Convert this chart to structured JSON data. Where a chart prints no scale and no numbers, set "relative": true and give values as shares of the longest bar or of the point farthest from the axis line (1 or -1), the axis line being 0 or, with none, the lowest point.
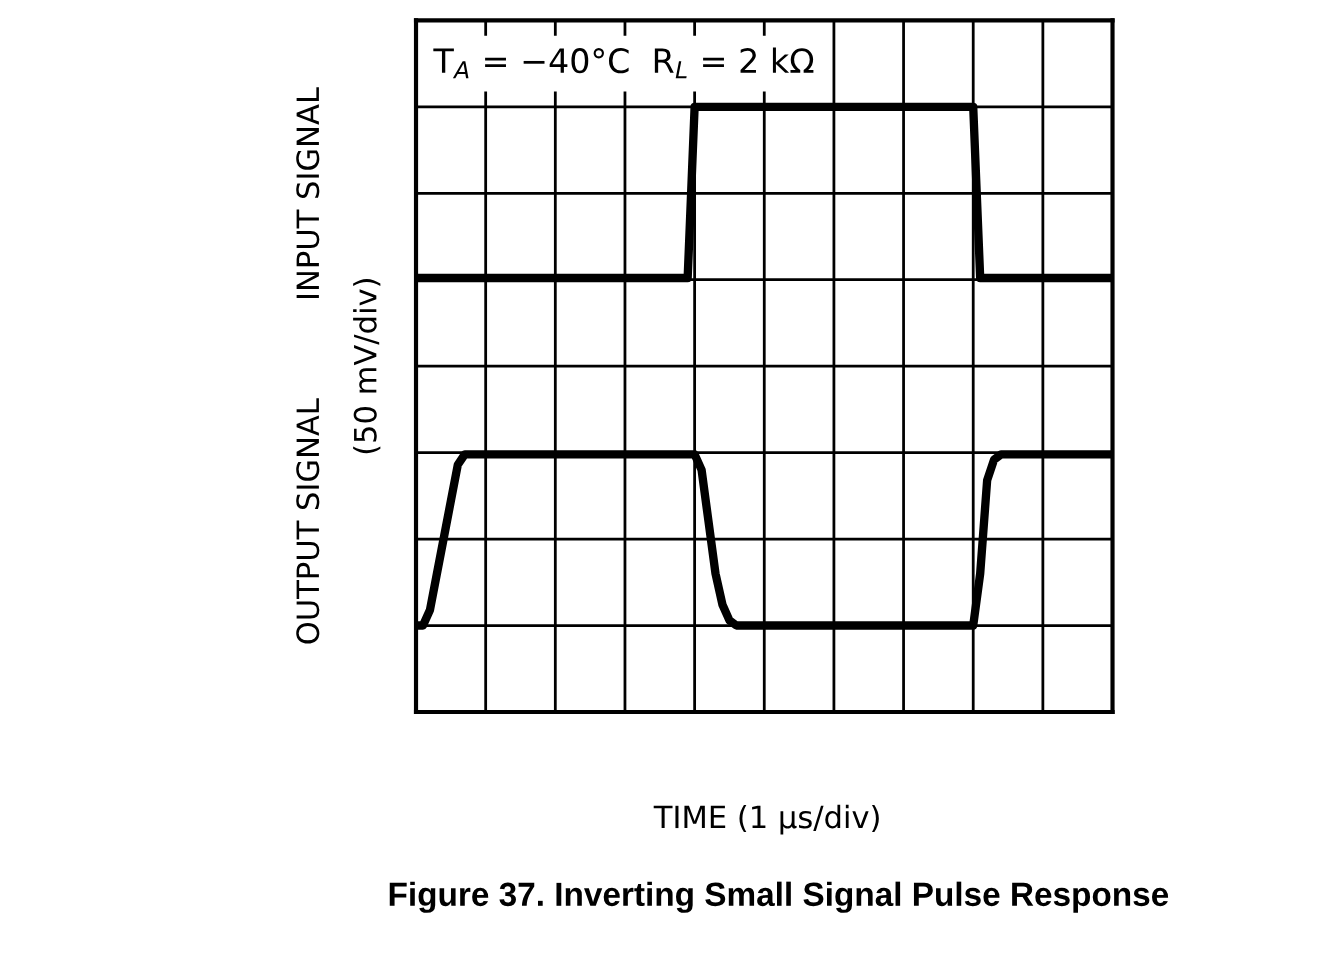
{
  "chart_data": {
    "type": "line",
    "title": "Figure 37. Inverting Small Signal Pulse Response",
    "ylabel": "OUTPUT SIGNAL          INPUT SIGNAL\n(50 mV/div)",
    "relative": true,
    "categories": [
      null,
      null,
      null,
      null,
      null,
      null,
      null,
      null,
      null,
      null,
      null,
      null,
      null,
      null,
      null,
      null,
      null,
      null,
      null,
      null,
      null,
      null,
      null,
      null,
      null,
      null,
      null,
      null,
      null,
      null,
      null,
      null,
      null,
      null,
      null,
      null,
      null,
      null,
      null,
      null,
      null,
      null,
      null,
      null,
      null,
      null,
      null,
      null,
      null,
      null,
      null,
      null,
      null,
      null,
      null,
      null,
      null,
      null,
      null,
      null,
      null,
      null,
      null,
      null,
      null,
      null,
      null,
      null,
      null,
      null,
      null,
      null,
      null,
      null,
      null,
      null,
      null,
      null,
      null,
      null,
      null,
      null,
      null,
      null,
      null,
      null,
      null,
      null,
      null,
      null,
      null,
      null,
      null,
      null,
      null,
      null,
      null,
      null,
      null,
      null,
      null
    ],
    "grid": true,
    "marker": "none",
    "line_style": "solid",
    "tick_labels": false,
    "annotations": [
      "T$_{A}$ = −40°C  R$_{L}$ = 2 kΩ",
      "TIME (1 μs/div)"
    ],
    "series": [
      {
        "color": "#000000",
        "values": [
          0.67,
          0.67,
          0.67,
          0.67,
          0.67,
          0.67,
          0.67,
          0.67,
          0.67,
          0.67,
          0.67,
          0.67,
          0.67,
          0.67,
          0.67,
          0.67,
          0.67,
          0.67,
          0.67,
          0.67,
          0.67,
          0.67,
          0.67,
          0.67,
          0.67,
          0.67,
          0.67,
          0.67,
          0.67,
          0.67,
          0.67,
          0.67,
          0.67,
          0.67,
          0.67,
          0.67,
          0.67,
          0.67,
          0.67,
          0.67,
          1,
          1,
          1,
          1,
          1,
          1,
          1,
          1,
          1,
          1,
          1,
          1,
          1,
          1,
          1,
          1,
          1,
          1,
          1,
          1,
          1,
          1,
          1,
          1,
          1,
          1,
          1,
          1,
          1,
          1,
          1,
          1,
          1,
          1,
          1,
          1,
          1,
          1,
          1,
          1,
          1,
          0.67,
          0.67,
          0.67,
          0.67,
          0.67,
          0.67,
          0.67,
          0.67,
          0.67,
          0.67,
          0.67,
          0.67,
          0.67,
          0.67,
          0.67,
          0.67,
          0.67,
          0.67,
          0.67,
          0.67
        ]
      },
      {
        "color": "#000000",
        "values": [
          0,
          0,
          0.03,
          0.1,
          0.17,
          0.24,
          0.31,
          0.33,
          0.33,
          0.33,
          0.33,
          0.33,
          0.33,
          0.33,
          0.33,
          0.33,
          0.33,
          0.33,
          0.33,
          0.33,
          0.33,
          0.33,
          0.33,
          0.33,
          0.33,
          0.33,
          0.33,
          0.33,
          0.33,
          0.33,
          0.33,
          0.33,
          0.33,
          0.33,
          0.33,
          0.33,
          0.33,
          0.33,
          0.33,
          0.33,
          0.33,
          0.3,
          0.2,
          0.1,
          0.04,
          0.01,
          0,
          0,
          0,
          0,
          0,
          0,
          0,
          0,
          0,
          0,
          0,
          0,
          0,
          0,
          0,
          0,
          0,
          0,
          0,
          0,
          0,
          0,
          0,
          0,
          0,
          0,
          0,
          0,
          0,
          0,
          0,
          0,
          0,
          0,
          0,
          0.1,
          0.28,
          0.32,
          0.33,
          0.33,
          0.33,
          0.33,
          0.33,
          0.33,
          0.33,
          0.33,
          0.33,
          0.33,
          0.33,
          0.33,
          0.33,
          0.33,
          0.33,
          0.33,
          0.33
        ]
      }
    ]
  }
}
